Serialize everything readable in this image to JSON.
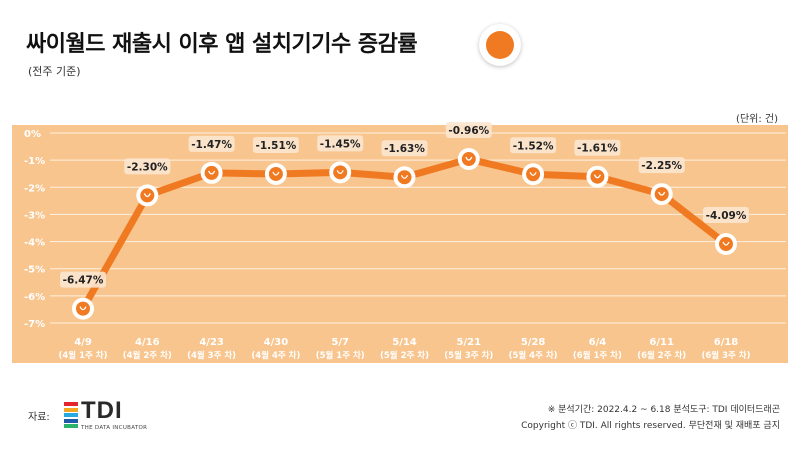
{
  "header": {
    "title": "싸이월드 재출시 이후 앱 설치기기수 증감률",
    "subtitle": "(전주 기준)",
    "unit": "(단위: 건)"
  },
  "footer": {
    "source_label": "자료:",
    "logo_text": "TDI",
    "logo_sub": "THE DATA INCUBATOR",
    "note_line1": "※ 분석기간: 2022.4.2 ~ 6.18 분석도구: TDI 데이터드래곤",
    "note_line2": "Copyright ⓒ TDI. All rights reserved. 무단전재 및 재배포 금지"
  },
  "colors": {
    "accent": "#f07a22",
    "chart_bg": "#f8c58e",
    "label_bg": "#fbe6d0",
    "logo_bars": [
      "#e2262b",
      "#f5a623",
      "#2aa8e0",
      "#1e5aa8",
      "#29b36b"
    ]
  },
  "chart_data": {
    "type": "line",
    "title": "싸이월드 재출시 이후 앱 설치기기수 증감률",
    "subtitle": "(전주 기준)",
    "categories": [
      "4/9",
      "4/16",
      "4/23",
      "4/30",
      "5/7",
      "5/14",
      "5/21",
      "5/28",
      "6/4",
      "6/11",
      "6/18"
    ],
    "sub_categories": [
      "(4월 1주 차)",
      "(4월 2주 차)",
      "(4월 3주 차)",
      "(4월 4주 차)",
      "(5월 1주 차)",
      "(5월 2주 차)",
      "(5월 3주 차)",
      "(5월 4주 차)",
      "(6월 1주 차)",
      "(6월 2주 차)",
      "(6월 3주 차)"
    ],
    "values": [
      -6.47,
      -2.3,
      -1.47,
      -1.51,
      -1.45,
      -1.63,
      -0.96,
      -1.52,
      -1.61,
      -2.25,
      -4.09
    ],
    "data_labels": [
      "-6.47%",
      "-2.30%",
      "-1.47%",
      "-1.51%",
      "-1.45%",
      "-1.63%",
      "-0.96%",
      "-1.52%",
      "-1.61%",
      "-2.25%",
      "-4.09%"
    ],
    "y_ticks": [
      0,
      -1,
      -2,
      -3,
      -4,
      -5,
      -6,
      -7
    ],
    "y_tick_labels": [
      "0%",
      "-1%",
      "-2%",
      "-3%",
      "-4%",
      "-5%",
      "-6%",
      "-7%"
    ],
    "ylim": [
      -7,
      0
    ],
    "grid": true,
    "legend": "none"
  }
}
